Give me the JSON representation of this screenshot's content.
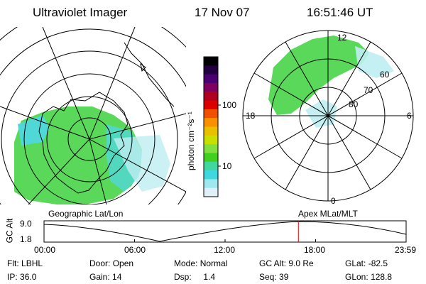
{
  "header": {
    "instrument": "Ultraviolet Imager",
    "date": "17 Nov 07",
    "time": "16:51:46 UT"
  },
  "colorbar": {
    "label": "photon cm⁻²s⁻¹",
    "ticks": [
      "100",
      "10"
    ],
    "colors": [
      "#000000",
      "#220040",
      "#4a0070",
      "#800060",
      "#b00020",
      "#dd0000",
      "#f05000",
      "#f89000",
      "#e8c000",
      "#c8e000",
      "#80e040",
      "#40d020",
      "#40d8a0",
      "#40d8e0",
      "#a0e8f0",
      "#e0f0f8"
    ]
  },
  "left_map": {
    "title": "Geographic Lat/Lon"
  },
  "right_map": {
    "title": "Apex MLat/MLT",
    "mlt_labels": {
      "top": "12",
      "left": "18",
      "right": "6",
      "bottom": "0"
    },
    "lat_labels": [
      "60",
      "70",
      "80"
    ]
  },
  "timeline": {
    "ylabel": "GC Alt",
    "yticks": [
      "9.0",
      "1.8"
    ],
    "xticks": [
      "00:00",
      "06:00",
      "12:00",
      "18:00",
      "23:59"
    ],
    "marker_hour": 16.86,
    "marker_color": "#dd0000"
  },
  "status": {
    "filter_label": "Flt:",
    "filter_value": "LBHL",
    "ip_label": "IP:",
    "ip_value": "36.0",
    "door_label": "Door:",
    "door_value": "Open",
    "gain_label": "Gain:",
    "gain_value": "14",
    "mode_label": "Mode:",
    "mode_value": "Normal",
    "dsp_label": "Dsp:",
    "dsp_value": "1.4",
    "gcalt_label": "GC Alt:",
    "gcalt_value": "9.0 Re",
    "seq_label": "Seq:",
    "seq_value": "39",
    "glat_label": "GLat:",
    "glat_value": "-82.5",
    "glon_label": "GLon:",
    "glon_value": "128.8"
  }
}
